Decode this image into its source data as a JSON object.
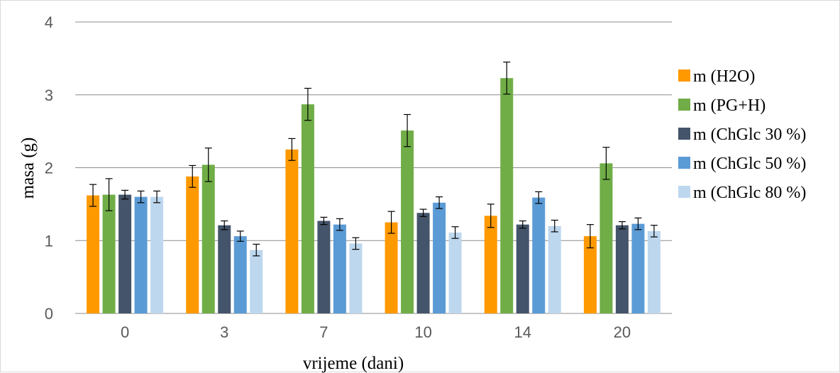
{
  "chart_data": {
    "type": "bar",
    "title": "",
    "xlabel": "vrijeme (dani)",
    "ylabel": "masa (g)",
    "ylim": [
      0,
      4
    ],
    "yticks": [
      0,
      1,
      2,
      3,
      4
    ],
    "grid": true,
    "legend_position": "right",
    "categories": [
      "0",
      "3",
      "7",
      "10",
      "14",
      "20"
    ],
    "series": [
      {
        "name": "m (H2O)",
        "color": "#FF9900",
        "values": [
          1.62,
          1.88,
          2.25,
          1.25,
          1.34,
          1.06
        ],
        "errors": [
          0.15,
          0.15,
          0.15,
          0.15,
          0.16,
          0.16
        ]
      },
      {
        "name": "m (PG+H)",
        "color": "#70AD47",
        "values": [
          1.63,
          2.04,
          2.87,
          2.51,
          3.23,
          2.06
        ],
        "errors": [
          0.22,
          0.23,
          0.22,
          0.22,
          0.22,
          0.22
        ]
      },
      {
        "name": "m (ChGlc 30 %)",
        "color": "#44546A",
        "values": [
          1.63,
          1.21,
          1.27,
          1.38,
          1.22,
          1.21
        ],
        "errors": [
          0.06,
          0.06,
          0.05,
          0.05,
          0.05,
          0.05
        ]
      },
      {
        "name": "m (ChGlc 50 %)",
        "color": "#5B9BD5",
        "values": [
          1.6,
          1.06,
          1.22,
          1.52,
          1.59,
          1.23
        ],
        "errors": [
          0.08,
          0.07,
          0.08,
          0.08,
          0.08,
          0.08
        ]
      },
      {
        "name": "m (ChGlc 80 %)",
        "color": "#BDD7EE",
        "values": [
          1.6,
          0.87,
          0.96,
          1.11,
          1.2,
          1.13
        ],
        "errors": [
          0.08,
          0.08,
          0.08,
          0.08,
          0.08,
          0.08
        ]
      }
    ]
  }
}
